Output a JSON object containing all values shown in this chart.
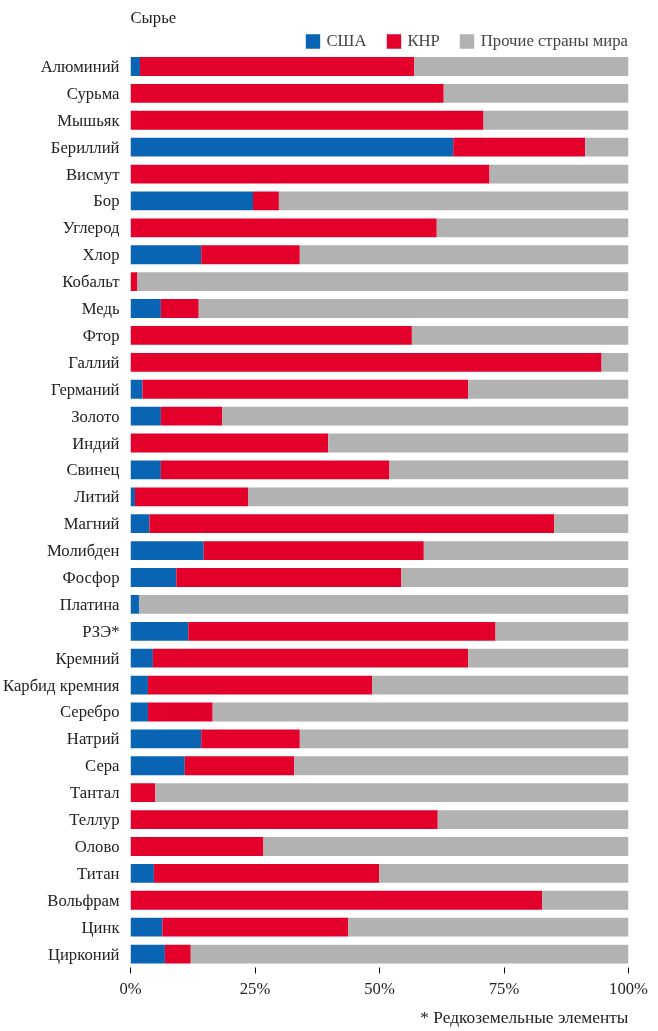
{
  "chart_data": {
    "type": "bar",
    "orientation": "horizontal",
    "stacked": true,
    "categories": [
      "Алюминий",
      "Сурьма",
      "Мышьяк",
      "Бериллий",
      "Висмут",
      "Бор",
      "Углерод",
      "Хлор",
      "Кобальт",
      "Медь",
      "Фтор",
      "Галлий",
      "Германий",
      "Золото",
      "Индий",
      "Свинец",
      "Литий",
      "Магний",
      "Молибден",
      "Фосфор",
      "Платина",
      "РЗЭ*",
      "Кремний",
      "Карбид кремния",
      "Серебро",
      "Натрий",
      "Сера",
      "Тантал",
      "Теллур",
      "Олово",
      "Титан",
      "Вольфрам",
      "Цинк",
      "Цирконий"
    ],
    "series": [
      {
        "name": "США",
        "color": "#0a64b4",
        "values": [
          1.9,
          0,
          0,
          64.8,
          0,
          24.6,
          0,
          14.2,
          0,
          6.1,
          0,
          0,
          2.4,
          6.1,
          0,
          6.1,
          0.9,
          3.8,
          14.7,
          9.2,
          1.7,
          11.6,
          4.5,
          3.5,
          3.5,
          14.2,
          10.9,
          0,
          0,
          0,
          4.7,
          0,
          6.4,
          6.9
        ]
      },
      {
        "name": "КНР",
        "color": "#e3002b",
        "values": [
          55.1,
          62.9,
          70.9,
          26.5,
          72.1,
          5.2,
          61.5,
          19.8,
          1.4,
          7.6,
          56.5,
          94.6,
          65.4,
          12.3,
          39.7,
          45.9,
          22.7,
          81.3,
          44.2,
          45.2,
          0,
          61.7,
          63.3,
          45.0,
          13.0,
          19.8,
          22.0,
          5.0,
          61.7,
          26.7,
          45.2,
          82.7,
          37.3,
          5.2
        ]
      },
      {
        "name": "Прочие страны мира",
        "color": "#b2b2b2",
        "values": [
          43.0,
          37.1,
          29.1,
          8.7,
          27.9,
          70.2,
          38.5,
          66.0,
          98.6,
          86.3,
          43.5,
          5.4,
          32.2,
          81.6,
          60.3,
          48.0,
          76.4,
          14.9,
          41.1,
          45.6,
          98.3,
          26.7,
          32.2,
          51.5,
          83.5,
          66.0,
          67.1,
          95.0,
          38.3,
          73.3,
          50.1,
          17.3,
          56.3,
          87.9
        ]
      }
    ],
    "xlim": [
      0,
      100
    ],
    "xticks": [
      {
        "value": 0,
        "label": "0%"
      },
      {
        "value": 25,
        "label": "25%"
      },
      {
        "value": 50,
        "label": "50%"
      },
      {
        "value": 75,
        "label": "75%"
      },
      {
        "value": 100,
        "label": "100%"
      }
    ],
    "grid": false,
    "legend": "top",
    "annotations": [
      "Сырье",
      "* Редкоземельные элементы"
    ]
  }
}
